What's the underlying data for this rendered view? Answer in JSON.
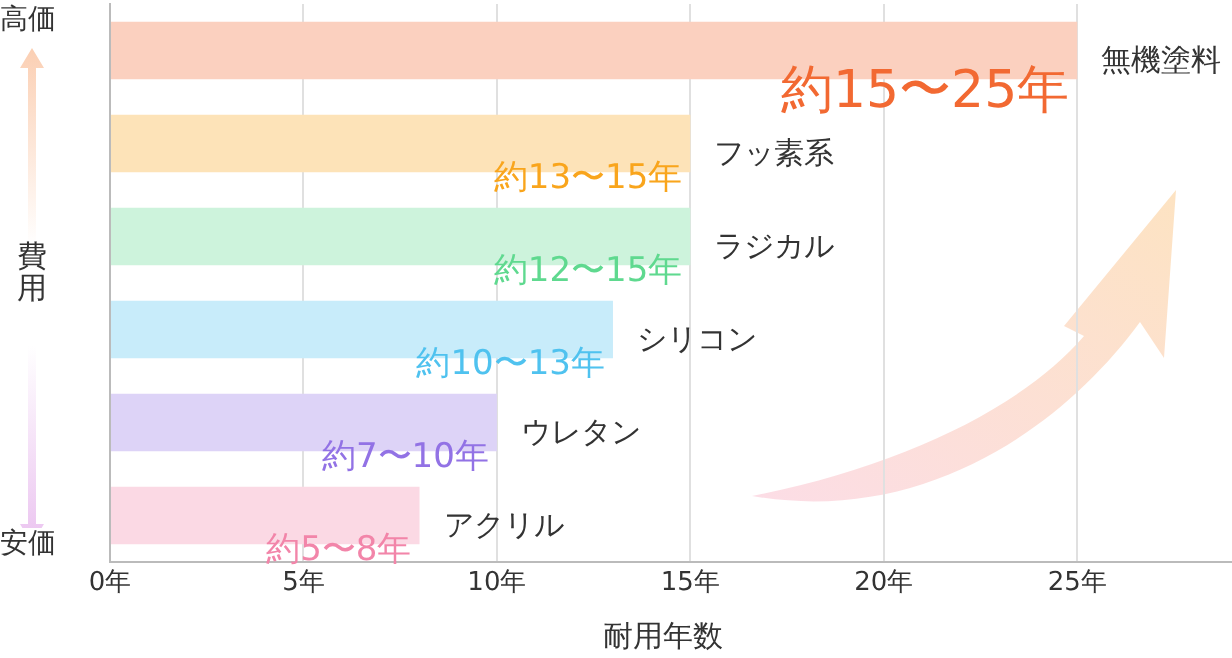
{
  "chart_data": {
    "type": "bar",
    "orientation": "horizontal",
    "xlabel": "耐用年数",
    "ylabel": "費用",
    "annotations": [
      "高価",
      "安価"
    ],
    "categories": [
      "無機塗料",
      "フッ素系",
      "ラジカル",
      "シリコン",
      "ウレタン",
      "アクリル"
    ],
    "values": [
      25,
      15,
      15,
      13,
      10,
      8
    ],
    "value_labels": [
      "約15〜25年",
      "約13〜15年",
      "約12〜15年",
      "約10〜13年",
      "約7〜10年",
      "約5〜8年"
    ],
    "colors": [
      "#fbd0bf",
      "#fde3b8",
      "#cdf3dc",
      "#c8ecfa",
      "#ddd3f7",
      "#fbd9e4"
    ],
    "xlim": [
      0,
      29
    ],
    "xticks": [
      {
        "value": 0,
        "label": "0年"
      },
      {
        "value": 5,
        "label": "5年"
      },
      {
        "value": 10,
        "label": "10年"
      },
      {
        "value": 15,
        "label": "15年"
      },
      {
        "value": 20,
        "label": "20年"
      },
      {
        "value": 25,
        "label": "25年"
      }
    ],
    "grid": "x",
    "tick_labels": "x"
  }
}
